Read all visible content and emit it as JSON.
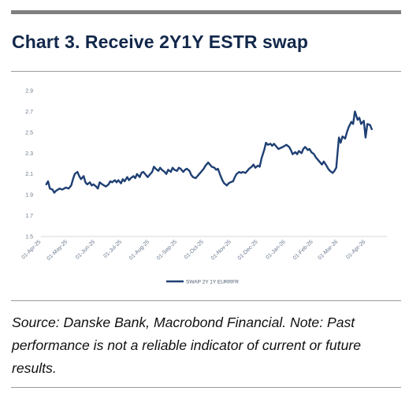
{
  "title": "Chart 3. Receive 2Y1Y ESTR swap",
  "source_note": "Source: Danske Bank, Macrobond Financial.  Note: Past performance is not a reliable indicator of current or future results.",
  "colors": {
    "line": "#1e3f73",
    "title": "#12284b",
    "rule": "#808080"
  },
  "chart_data": {
    "type": "line",
    "title": "",
    "xlabel": "",
    "ylabel": "",
    "ylim": [
      1.5,
      2.9
    ],
    "xlim": [
      "2025-04-01",
      "2026-04-25"
    ],
    "grid": false,
    "legend_position": "bottom-center",
    "y_ticks": [
      "2.9",
      "2.7",
      "2.5",
      "2.3",
      "2.1",
      "1.9",
      "1.7",
      "1.5"
    ],
    "x_ticks": [
      "01-Apr-25",
      "01-May-25",
      "01-Jun-25",
      "01-Jul-25",
      "01-Aug-25",
      "01-Sep-25",
      "01-Oct-25",
      "01-Nov-25",
      "01-Dec-25",
      "01-Jan-26",
      "01-Feb-26",
      "01-Mar-26",
      "01-Apr-26"
    ],
    "x_tick_dates": [
      "2025-04-01",
      "2025-05-01",
      "2025-06-01",
      "2025-07-01",
      "2025-08-01",
      "2025-09-01",
      "2025-10-01",
      "2025-11-01",
      "2025-12-01",
      "2026-01-01",
      "2026-02-01",
      "2026-03-01",
      "2026-04-01"
    ],
    "series": [
      {
        "name": "SWAP 2Y 1Y EURRFR",
        "color": "#1e3f73",
        "points": [
          [
            "2025-04-07",
            2.0
          ],
          [
            "2025-04-09",
            2.03
          ],
          [
            "2025-04-11",
            1.96
          ],
          [
            "2025-04-14",
            1.95
          ],
          [
            "2025-04-16",
            1.92
          ],
          [
            "2025-04-18",
            1.94
          ],
          [
            "2025-04-22",
            1.96
          ],
          [
            "2025-04-25",
            1.95
          ],
          [
            "2025-04-29",
            1.97
          ],
          [
            "2025-05-02",
            1.96
          ],
          [
            "2025-05-05",
            1.99
          ],
          [
            "2025-05-07",
            2.05
          ],
          [
            "2025-05-09",
            2.1
          ],
          [
            "2025-05-12",
            2.12
          ],
          [
            "2025-05-14",
            2.08
          ],
          [
            "2025-05-16",
            2.05
          ],
          [
            "2025-05-19",
            2.08
          ],
          [
            "2025-05-21",
            2.02
          ],
          [
            "2025-05-23",
            2.0
          ],
          [
            "2025-05-26",
            2.02
          ],
          [
            "2025-05-28",
            1.99
          ],
          [
            "2025-05-30",
            2.0
          ],
          [
            "2025-06-02",
            1.98
          ],
          [
            "2025-06-04",
            1.96
          ],
          [
            "2025-06-06",
            2.02
          ],
          [
            "2025-06-09",
            2.0
          ],
          [
            "2025-06-11",
            1.99
          ],
          [
            "2025-06-13",
            1.98
          ],
          [
            "2025-06-16",
            2.0
          ],
          [
            "2025-06-18",
            2.03
          ],
          [
            "2025-06-20",
            2.02
          ],
          [
            "2025-06-23",
            2.04
          ],
          [
            "2025-06-25",
            2.02
          ],
          [
            "2025-06-27",
            2.04
          ],
          [
            "2025-06-30",
            2.01
          ],
          [
            "2025-07-02",
            2.05
          ],
          [
            "2025-07-04",
            2.03
          ],
          [
            "2025-07-07",
            2.07
          ],
          [
            "2025-07-09",
            2.04
          ],
          [
            "2025-07-11",
            2.06
          ],
          [
            "2025-07-14",
            2.08
          ],
          [
            "2025-07-16",
            2.06
          ],
          [
            "2025-07-18",
            2.1
          ],
          [
            "2025-07-21",
            2.07
          ],
          [
            "2025-07-23",
            2.11
          ],
          [
            "2025-07-25",
            2.12
          ],
          [
            "2025-07-28",
            2.09
          ],
          [
            "2025-07-30",
            2.07
          ],
          [
            "2025-08-01",
            2.09
          ],
          [
            "2025-08-04",
            2.12
          ],
          [
            "2025-08-06",
            2.17
          ],
          [
            "2025-08-08",
            2.15
          ],
          [
            "2025-08-11",
            2.13
          ],
          [
            "2025-08-13",
            2.16
          ],
          [
            "2025-08-15",
            2.14
          ],
          [
            "2025-08-18",
            2.12
          ],
          [
            "2025-08-20",
            2.1
          ],
          [
            "2025-08-22",
            2.14
          ],
          [
            "2025-08-25",
            2.12
          ],
          [
            "2025-08-27",
            2.16
          ],
          [
            "2025-08-29",
            2.14
          ],
          [
            "2025-09-01",
            2.13
          ],
          [
            "2025-09-03",
            2.16
          ],
          [
            "2025-09-05",
            2.15
          ],
          [
            "2025-09-08",
            2.12
          ],
          [
            "2025-09-10",
            2.14
          ],
          [
            "2025-09-12",
            2.15
          ],
          [
            "2025-09-15",
            2.13
          ],
          [
            "2025-09-17",
            2.09
          ],
          [
            "2025-09-19",
            2.07
          ],
          [
            "2025-09-22",
            2.06
          ],
          [
            "2025-09-24",
            2.08
          ],
          [
            "2025-09-26",
            2.1
          ],
          [
            "2025-09-29",
            2.13
          ],
          [
            "2025-10-01",
            2.15
          ],
          [
            "2025-10-03",
            2.18
          ],
          [
            "2025-10-06",
            2.21
          ],
          [
            "2025-10-08",
            2.19
          ],
          [
            "2025-10-10",
            2.17
          ],
          [
            "2025-10-13",
            2.16
          ],
          [
            "2025-10-15",
            2.14
          ],
          [
            "2025-10-17",
            2.15
          ],
          [
            "2025-10-20",
            2.08
          ],
          [
            "2025-10-22",
            2.04
          ],
          [
            "2025-10-24",
            2.01
          ],
          [
            "2025-10-27",
            1.99
          ],
          [
            "2025-10-29",
            2.01
          ],
          [
            "2025-10-31",
            2.02
          ],
          [
            "2025-11-03",
            2.03
          ],
          [
            "2025-11-05",
            2.07
          ],
          [
            "2025-11-07",
            2.1
          ],
          [
            "2025-11-10",
            2.12
          ],
          [
            "2025-11-12",
            2.11
          ],
          [
            "2025-11-14",
            2.12
          ],
          [
            "2025-11-17",
            2.11
          ],
          [
            "2025-11-19",
            2.13
          ],
          [
            "2025-11-21",
            2.15
          ],
          [
            "2025-11-24",
            2.17
          ],
          [
            "2025-11-26",
            2.19
          ],
          [
            "2025-11-28",
            2.16
          ],
          [
            "2025-12-01",
            2.18
          ],
          [
            "2025-12-03",
            2.17
          ],
          [
            "2025-12-05",
            2.25
          ],
          [
            "2025-12-08",
            2.33
          ],
          [
            "2025-12-10",
            2.4
          ],
          [
            "2025-12-12",
            2.38
          ],
          [
            "2025-12-15",
            2.39
          ],
          [
            "2025-12-17",
            2.37
          ],
          [
            "2025-12-19",
            2.39
          ],
          [
            "2025-12-22",
            2.36
          ],
          [
            "2025-12-24",
            2.34
          ],
          [
            "2025-12-29",
            2.36
          ],
          [
            "2026-01-02",
            2.38
          ],
          [
            "2026-01-05",
            2.36
          ],
          [
            "2026-01-07",
            2.33
          ],
          [
            "2026-01-09",
            2.29
          ],
          [
            "2026-01-12",
            2.31
          ],
          [
            "2026-01-14",
            2.29
          ],
          [
            "2026-01-16",
            2.32
          ],
          [
            "2026-01-19",
            2.3
          ],
          [
            "2026-01-21",
            2.34
          ],
          [
            "2026-01-23",
            2.36
          ],
          [
            "2026-01-26",
            2.33
          ],
          [
            "2026-01-28",
            2.34
          ],
          [
            "2026-01-30",
            2.31
          ],
          [
            "2026-02-02",
            2.29
          ],
          [
            "2026-02-04",
            2.26
          ],
          [
            "2026-02-06",
            2.24
          ],
          [
            "2026-02-09",
            2.21
          ],
          [
            "2026-02-11",
            2.19
          ],
          [
            "2026-02-13",
            2.22
          ],
          [
            "2026-02-16",
            2.18
          ],
          [
            "2026-02-18",
            2.15
          ],
          [
            "2026-02-20",
            2.13
          ],
          [
            "2026-02-23",
            2.11
          ],
          [
            "2026-02-25",
            2.13
          ],
          [
            "2026-02-27",
            2.16
          ],
          [
            "2026-03-02",
            2.45
          ],
          [
            "2026-03-04",
            2.4
          ],
          [
            "2026-03-06",
            2.46
          ],
          [
            "2026-03-09",
            2.44
          ],
          [
            "2026-03-11",
            2.5
          ],
          [
            "2026-03-13",
            2.55
          ],
          [
            "2026-03-16",
            2.6
          ],
          [
            "2026-03-18",
            2.58
          ],
          [
            "2026-03-20",
            2.7
          ],
          [
            "2026-03-23",
            2.62
          ],
          [
            "2026-03-25",
            2.64
          ],
          [
            "2026-03-27",
            2.58
          ],
          [
            "2026-03-30",
            2.61
          ],
          [
            "2026-04-01",
            2.45
          ],
          [
            "2026-04-03",
            2.58
          ],
          [
            "2026-04-06",
            2.57
          ],
          [
            "2026-04-08",
            2.53
          ]
        ]
      }
    ]
  }
}
